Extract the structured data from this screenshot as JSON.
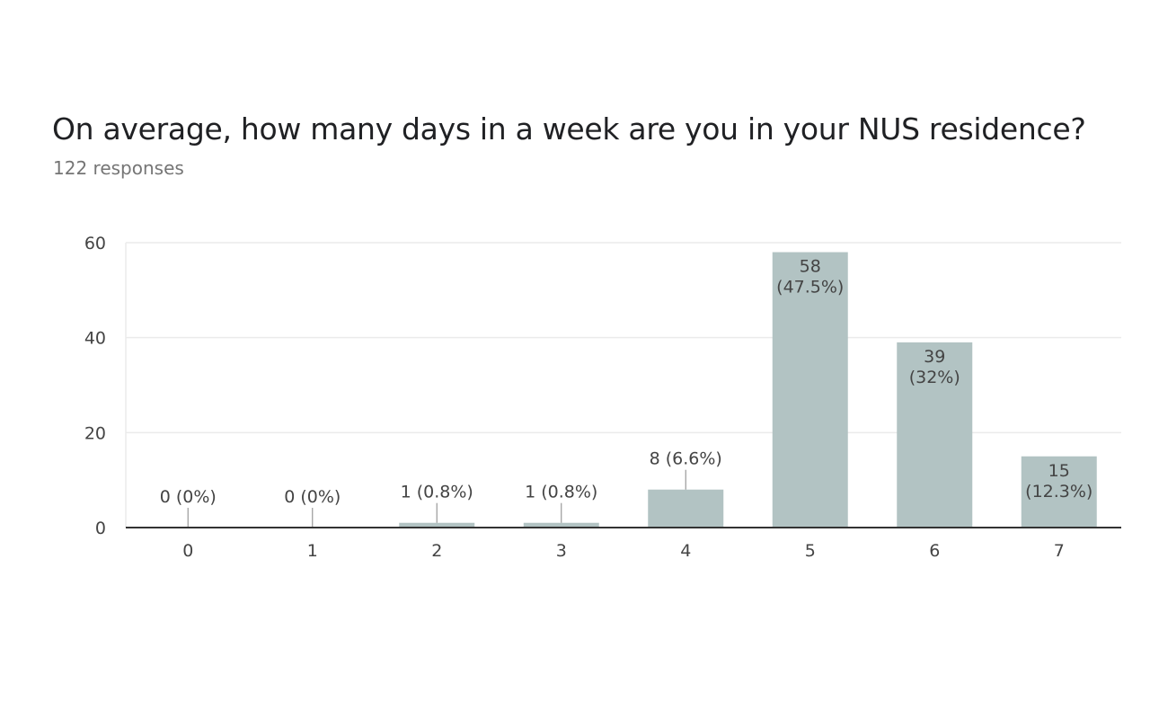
{
  "form": {
    "question": "On average, how many days in a week are you in your NUS residence?",
    "responses": "122 responses"
  },
  "colors": {
    "bar": "#b2c3c3",
    "grid": "#ebebeb",
    "axis": "#333333",
    "text": "#444444"
  },
  "chart_data": {
    "type": "bar",
    "title": "",
    "xlabel": "",
    "ylabel": "",
    "categories": [
      "0",
      "1",
      "2",
      "3",
      "4",
      "5",
      "6",
      "7"
    ],
    "values": [
      0,
      0,
      1,
      1,
      8,
      58,
      39,
      15
    ],
    "data_labels": [
      [
        "0 (0%)"
      ],
      [
        "0 (0%)"
      ],
      [
        "1 (0.8%)"
      ],
      [
        "1 (0.8%)"
      ],
      [
        "8 (6.6%)"
      ],
      [
        "58",
        "(47.5%)"
      ],
      [
        "39",
        "(32%)"
      ],
      [
        "15",
        "(12.3%)"
      ]
    ],
    "y_ticks": [
      0,
      20,
      40,
      60
    ],
    "ylim": [
      0,
      60
    ],
    "grid": true,
    "legend": "none"
  }
}
